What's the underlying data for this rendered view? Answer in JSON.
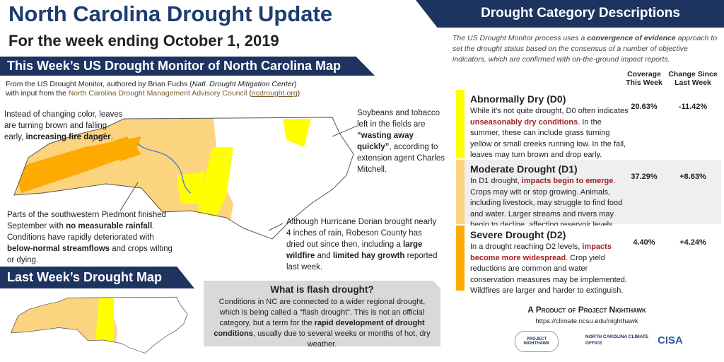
{
  "header": {
    "title": "North Carolina Drought Update",
    "subtitle": "For the week ending October 1, 2019"
  },
  "this_week": {
    "title": "This Week’s US Drought Monitor of North Carolina Map",
    "source": [
      {
        "text": "From the US Drought Monitor, authored by Brian Fuchs (",
        "style": "plain"
      },
      {
        "text": "Natl. Drought Mitigation Center",
        "style": "italic"
      },
      {
        "text": ") with input from the ",
        "style": "plain"
      },
      {
        "text": "North Carolina Drought Management Advisory Council",
        "style": "link"
      },
      {
        "text": " (",
        "style": "plain"
      },
      {
        "text": "ncdrought.org",
        "style": "link-underline"
      },
      {
        "text": ")",
        "style": "plain"
      }
    ],
    "annotations": [
      [
        {
          "text": "Instead of changing color, leaves are turning brown and falling early, ",
          "style": "plain"
        },
        {
          "text": "increasing fire danger",
          "style": "bold"
        },
        {
          "text": ".",
          "style": "plain"
        }
      ],
      [
        {
          "text": "Soybeans and tobacco left in the fields are ",
          "style": "plain"
        },
        {
          "text": "“wasting away quickly”",
          "style": "bold"
        },
        {
          "text": ", according to extension agent Charles Mitchell.",
          "style": "plain"
        }
      ],
      [
        {
          "text": "Parts of the southwestern Piedmont finished September with ",
          "style": "plain"
        },
        {
          "text": "no measurable rainfall",
          "style": "bold"
        },
        {
          "text": ". Conditions have rapidly deteriorated with ",
          "style": "plain"
        },
        {
          "text": "below-normal streamflows",
          "style": "bold"
        },
        {
          "text": " and crops wilting or dying.",
          "style": "plain"
        }
      ],
      [
        {
          "text": "Although Hurricane Dorian brought nearly 4 inches of rain, Robeson County has dried out since then, including a ",
          "style": "plain"
        },
        {
          "text": "large wildfire",
          "style": "bold"
        },
        {
          "text": " and ",
          "style": "plain"
        },
        {
          "text": "limited hay growth",
          "style": "bold"
        },
        {
          "text": " reported last week.",
          "style": "plain"
        }
      ]
    ]
  },
  "last_week": {
    "title": "Last Week’s Drought Map"
  },
  "flash_drought": {
    "title": "What is flash drought?",
    "body": [
      {
        "text": "Conditions in NC are connected to a wider regional drought, which is being called a “flash drought”. This is not an official category, but a term for the ",
        "style": "plain"
      },
      {
        "text": "rapid development of drought conditions",
        "style": "bold"
      },
      {
        "text": ", usually due to several weeks or months of hot, dry weather.",
        "style": "plain"
      }
    ]
  },
  "categories_panel": {
    "title": "Drought Category Descriptions",
    "intro": [
      {
        "text": "The US Drought Monitor process uses a ",
        "style": "plain"
      },
      {
        "text": "convergence of evidence",
        "style": "bold"
      },
      {
        "text": " approach to set the drought status based on the consensus of a number of objective indicators, which are confirmed with on-the-ground impact reports.",
        "style": "plain"
      }
    ],
    "columns": [
      "Coverage This Week",
      "Change Since Last Week"
    ],
    "rows": [
      {
        "name": "Abnormally Dry (D0)",
        "color": "#ffff00",
        "background": "#ffffff",
        "description": [
          {
            "text": "While it’s not quite drought, D0 often indicates ",
            "style": "plain"
          },
          {
            "text": "unseasonably dry conditions",
            "style": "red"
          },
          {
            "text": ". In the summer, these can include grass turning yellow or small creeks running low. In the fall, leaves may turn brown and drop early.",
            "style": "plain"
          }
        ],
        "coverage": "20.63%",
        "change": "-11.42%"
      },
      {
        "name": "Moderate Drought (D1)",
        "color": "#fcd37f",
        "background": "#efefef",
        "description": [
          {
            "text": "In D1 drought, ",
            "style": "plain"
          },
          {
            "text": "impacts begin to emerge",
            "style": "red"
          },
          {
            "text": ". Crops may wilt or stop growing. Animals, including livestock, may struggle to find food and water. Larger streams and rivers may begin to decline, affecting reservoir levels.",
            "style": "plain"
          }
        ],
        "coverage": "37.29%",
        "change": "+8.63%"
      },
      {
        "name": "Severe Drought (D2)",
        "color": "#ffaa00",
        "background": "#ffffff",
        "description": [
          {
            "text": "In a drought reaching D2 levels, ",
            "style": "plain"
          },
          {
            "text": "impacts become more widespread",
            "style": "red"
          },
          {
            "text": ". Crop yield reductions are common and water conservation measures may be implemented. Wildfires are larger and harder to extinguish.",
            "style": "plain"
          }
        ],
        "coverage": "4.40%",
        "change": "+4.24%"
      }
    ]
  },
  "footer": {
    "credit": "A Product of Project Nighthawk",
    "url": "https://climate.ncsu.edu/nighthawk",
    "logos": [
      "PROJECT NIGHTHAWK",
      "NORTH CAROLINA CLIMATE OFFICE",
      "CISA"
    ]
  }
}
